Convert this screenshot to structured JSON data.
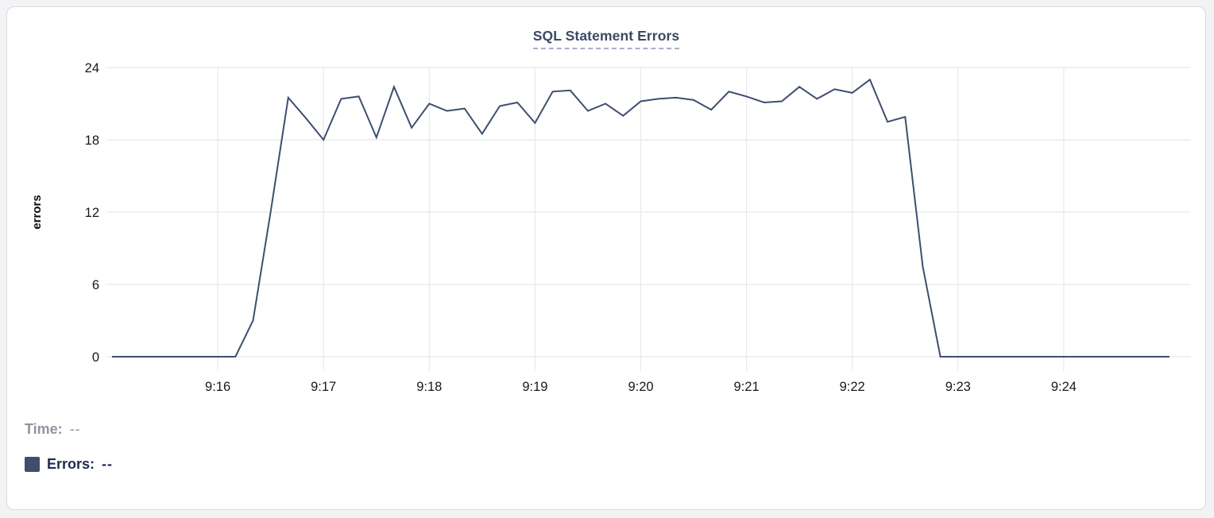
{
  "card": {
    "background": "#ffffff",
    "border_color": "#d9dade"
  },
  "chart_data": {
    "type": "line",
    "title": "SQL Statement Errors",
    "xlabel": "",
    "ylabel": "errors",
    "ylim": [
      0,
      24
    ],
    "y_ticks": [
      0,
      6,
      12,
      18,
      24
    ],
    "x_tick_labels": [
      "9:16",
      "9:17",
      "9:18",
      "9:19",
      "9:20",
      "9:21",
      "9:22",
      "9:23",
      "9:24"
    ],
    "x_range": [
      "9:15:00",
      "9:25:00"
    ],
    "grid": "on",
    "legend_position": "bottom-left",
    "line_color": "#3e4f6e",
    "grid_color": "#e8e8ea",
    "tick_label_color": "#17191e",
    "x": [
      "9:15:00",
      "9:15:10",
      "9:15:20",
      "9:15:30",
      "9:15:40",
      "9:15:50",
      "9:16:00",
      "9:16:10",
      "9:16:20",
      "9:16:30",
      "9:16:40",
      "9:16:50",
      "9:17:00",
      "9:17:10",
      "9:17:20",
      "9:17:30",
      "9:17:40",
      "9:17:50",
      "9:18:00",
      "9:18:10",
      "9:18:20",
      "9:18:30",
      "9:18:40",
      "9:18:50",
      "9:19:00",
      "9:19:10",
      "9:19:20",
      "9:19:30",
      "9:19:40",
      "9:19:50",
      "9:20:00",
      "9:20:10",
      "9:20:20",
      "9:20:30",
      "9:20:40",
      "9:20:50",
      "9:21:00",
      "9:21:10",
      "9:21:20",
      "9:21:30",
      "9:21:40",
      "9:21:50",
      "9:22:00",
      "9:22:10",
      "9:22:20",
      "9:22:30",
      "9:22:40",
      "9:22:50",
      "9:23:00",
      "9:23:10",
      "9:23:20",
      "9:23:30",
      "9:23:40",
      "9:23:50",
      "9:24:00",
      "9:24:10",
      "9:24:20",
      "9:24:30",
      "9:24:40",
      "9:24:50",
      "9:25:00"
    ],
    "values": [
      0,
      0,
      0,
      0,
      0,
      0,
      0,
      0,
      3,
      12,
      21.5,
      19.8,
      18,
      21.4,
      21.6,
      18.2,
      22.4,
      19,
      21,
      20.4,
      20.6,
      18.5,
      20.8,
      21.1,
      19.4,
      22,
      22.1,
      20.4,
      21,
      20,
      21.2,
      21.4,
      21.5,
      21.3,
      20.5,
      22,
      21.6,
      21.1,
      21.2,
      22.4,
      21.4,
      22.2,
      21.9,
      23,
      19.5,
      19.9,
      7.5,
      0,
      0,
      0,
      0,
      0,
      0,
      0,
      0,
      0,
      0,
      0,
      0,
      0,
      0
    ],
    "readout": {
      "time_label": "Time:",
      "time_value": "--",
      "errors_label": "Errors:",
      "errors_value": "--",
      "swatch_color": "#3e4f6e"
    }
  }
}
